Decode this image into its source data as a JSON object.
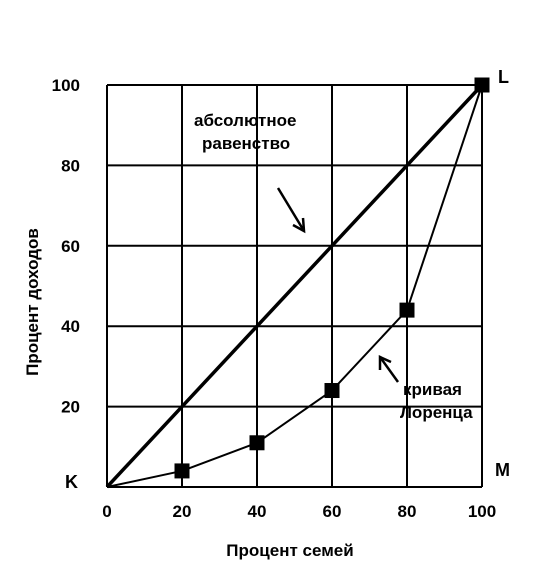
{
  "chart_data": {
    "type": "line",
    "xlabel": "Процент семей",
    "ylabel": "Процент доходов",
    "xlim": [
      0,
      100
    ],
    "ylim": [
      0,
      100
    ],
    "x_ticks": [
      "0",
      "20",
      "40",
      "60",
      "80",
      "100"
    ],
    "y_ticks": [
      "20",
      "40",
      "60",
      "80",
      "100"
    ],
    "grid": true,
    "series": [
      {
        "name": "абсолютное равенство",
        "x": [
          0,
          100
        ],
        "y": [
          0,
          100
        ],
        "markers": false
      },
      {
        "name": "кривая Лоренца",
        "x": [
          0,
          20,
          40,
          60,
          80,
          100
        ],
        "y": [
          0,
          4,
          11,
          24,
          44,
          100
        ],
        "markers": true
      }
    ],
    "point_labels": {
      "origin": "K",
      "top_right": "L",
      "bottom_right": "M"
    },
    "annotations": {
      "equality": [
        "абсолютное",
        "равенство"
      ],
      "lorenz": [
        "кривая",
        "Лоренца"
      ]
    }
  }
}
